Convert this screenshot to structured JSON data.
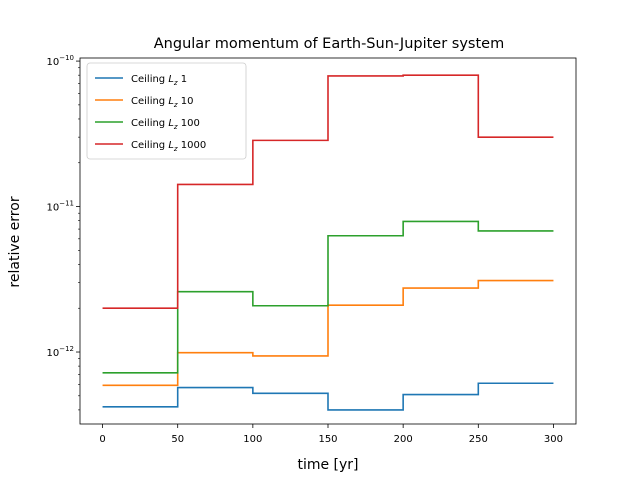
{
  "chart_data": {
    "type": "line",
    "drawstyle": "steps-post",
    "title": "Angular momentum of Earth-Sun-Jupiter system",
    "xlabel": "time [yr]",
    "ylabel": "relative error",
    "xlim": [
      -15,
      315
    ],
    "ylim": [
      3.2e-13,
      1.05e-10
    ],
    "yscale": "log",
    "xticks": [
      0,
      50,
      100,
      150,
      200,
      250,
      300
    ],
    "yticks": [
      1e-12,
      1e-11,
      1e-10
    ],
    "ytick_labels": [
      {
        "base": "10",
        "exp": "−12"
      },
      {
        "base": "10",
        "exp": "−11"
      },
      {
        "base": "10",
        "exp": "−10"
      }
    ],
    "grid": false,
    "legend_position": "upper left",
    "x": [
      0,
      50,
      100,
      150,
      200,
      250,
      300
    ],
    "series": [
      {
        "name": "Ceiling  Lz 1",
        "legend_prefix": "Ceiling",
        "legend_symbol": "L",
        "legend_sub": "z",
        "legend_value": "1",
        "color": "#1f77b4",
        "values": [
          4.2e-13,
          5.7e-13,
          5.2e-13,
          4e-13,
          5.1e-13,
          6.1e-13,
          6.1e-13
        ]
      },
      {
        "name": "Ceiling  Lz 10",
        "legend_prefix": "Ceiling",
        "legend_symbol": "L",
        "legend_sub": "z",
        "legend_value": "10",
        "color": "#ff7f0e",
        "values": [
          5.9e-13,
          9.9e-13,
          9.4e-13,
          2.1e-12,
          2.75e-12,
          3.1e-12,
          3.1e-12
        ]
      },
      {
        "name": "Ceiling  Lz 100",
        "legend_prefix": "Ceiling",
        "legend_symbol": "L",
        "legend_sub": "z",
        "legend_value": "100",
        "color": "#2ca02c",
        "values": [
          7.2e-13,
          2.6e-12,
          2.08e-12,
          6.3e-12,
          7.9e-12,
          6.8e-12,
          6.8e-12
        ]
      },
      {
        "name": "Ceiling  Lz 1000",
        "legend_prefix": "Ceiling",
        "legend_symbol": "L",
        "legend_sub": "z",
        "legend_value": "1000",
        "color": "#d62728",
        "values": [
          2e-12,
          1.42e-11,
          2.85e-11,
          7.9e-11,
          8e-11,
          3e-11,
          3e-11
        ]
      }
    ]
  }
}
